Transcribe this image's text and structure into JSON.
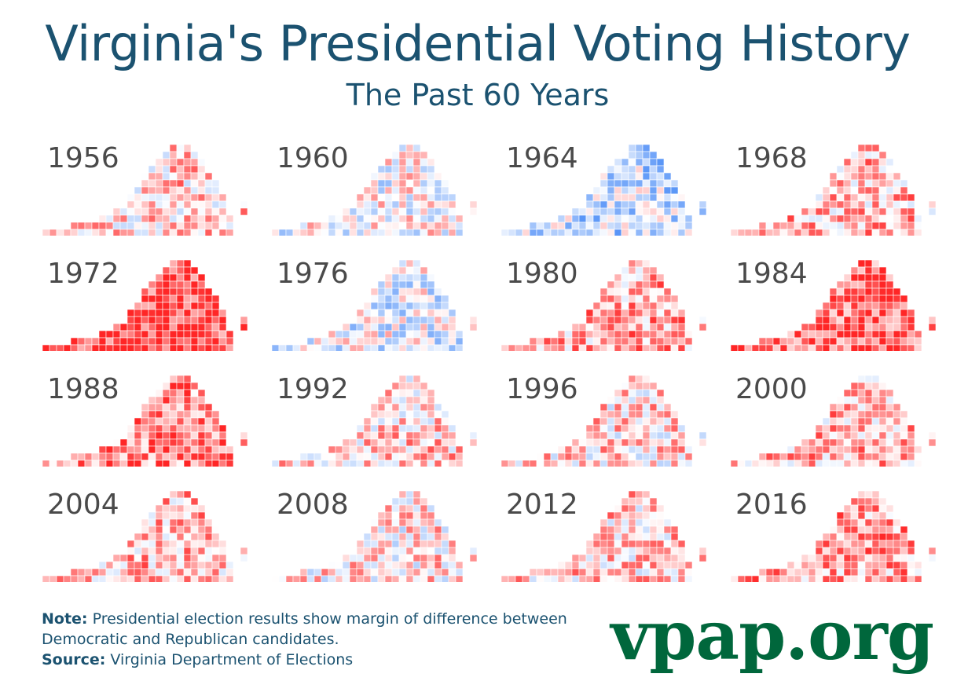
{
  "title": "Virginia's Presidential Voting History",
  "subtitle": "The Past 60 Years",
  "legend_colors": {
    "democratic": "#3b82f6",
    "republican": "#ff2626",
    "neutral": "#ffffff"
  },
  "maps": [
    {
      "year": "1956",
      "lean": 0.25
    },
    {
      "year": "1960",
      "lean": 0.0
    },
    {
      "year": "1964",
      "lean": -0.3
    },
    {
      "year": "1968",
      "lean": 0.35
    },
    {
      "year": "1972",
      "lean": 0.85
    },
    {
      "year": "1976",
      "lean": -0.1
    },
    {
      "year": "1980",
      "lean": 0.4
    },
    {
      "year": "1984",
      "lean": 0.7
    },
    {
      "year": "1988",
      "lean": 0.55
    },
    {
      "year": "1992",
      "lean": 0.25
    },
    {
      "year": "1996",
      "lean": 0.2
    },
    {
      "year": "2000",
      "lean": 0.35
    },
    {
      "year": "2004",
      "lean": 0.35
    },
    {
      "year": "2008",
      "lean": 0.15
    },
    {
      "year": "2012",
      "lean": 0.25
    },
    {
      "year": "2016",
      "lean": 0.45
    }
  ],
  "note": {
    "label": "Note:",
    "text": " Presidential election results show margin of difference between Democratic and Republican candidates.",
    "source_label": "Source:",
    "source_text": " Virginia Department of Elections"
  },
  "brand": "vpap.org"
}
